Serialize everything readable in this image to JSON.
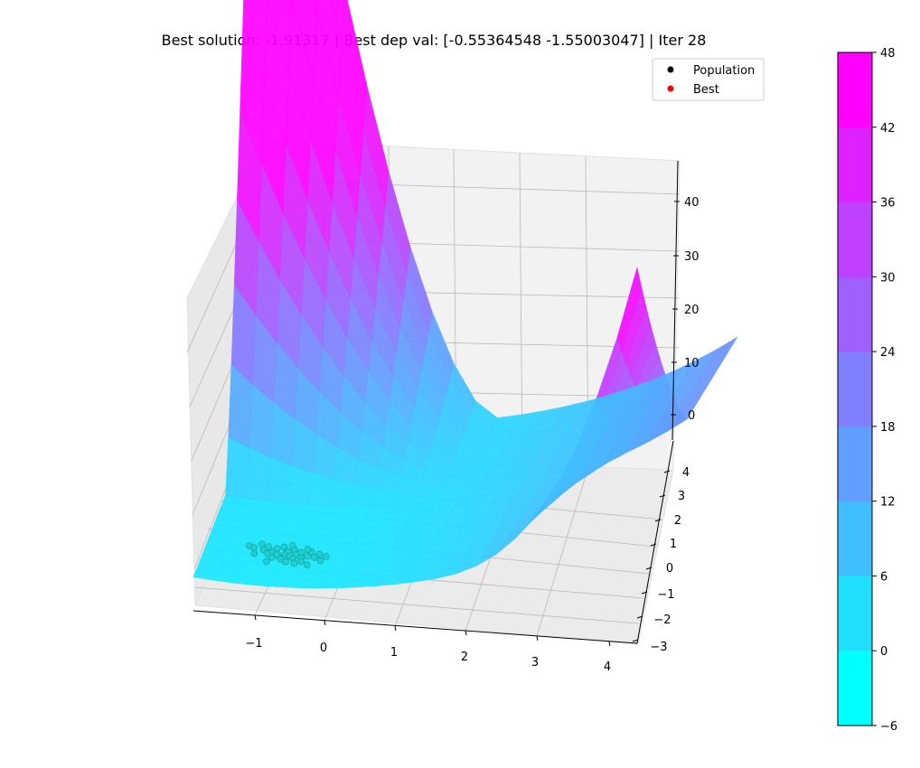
{
  "chart_data": {
    "type": "surface",
    "title": "Best solution: -1.91317 | Best dep val: [-0.55364548 -1.55003047] | Iter 28",
    "x_ticks": [
      "−1",
      "0",
      "1",
      "2",
      "3",
      "4"
    ],
    "y_ticks": [
      "−3",
      "−2",
      "−1",
      "0",
      "1",
      "2",
      "3",
      "4"
    ],
    "z_ticks": [
      "0",
      "10",
      "20",
      "30",
      "40"
    ],
    "xlim": [
      -1.5,
      4.5
    ],
    "ylim": [
      -3,
      4.5
    ],
    "zlim": [
      -6,
      48
    ],
    "colormap": "cool",
    "colorbar": {
      "ticks": [
        "−6",
        "0",
        "6",
        "12",
        "18",
        "24",
        "30",
        "36",
        "42",
        "48"
      ],
      "range": [
        -6,
        48
      ],
      "levels": 9
    },
    "legend": {
      "placement": "upper-right",
      "entries": [
        {
          "label": "Population",
          "color": "#000000"
        },
        {
          "label": "Best",
          "color": "#ff0000"
        }
      ]
    },
    "best": {
      "x": -0.55364548,
      "y": -1.55003047,
      "value": -1.91317
    },
    "population": [
      {
        "x": -0.95,
        "y": -1.3
      },
      {
        "x": -0.88,
        "y": -1.35
      },
      {
        "x": -0.8,
        "y": -1.15
      },
      {
        "x": -0.75,
        "y": -1.4
      },
      {
        "x": -0.7,
        "y": -1.25
      },
      {
        "x": -0.68,
        "y": -1.55
      },
      {
        "x": -0.62,
        "y": -1.45
      },
      {
        "x": -0.6,
        "y": -1.7
      },
      {
        "x": -0.58,
        "y": -1.3
      },
      {
        "x": -0.55,
        "y": -1.55
      },
      {
        "x": -0.52,
        "y": -1.62
      },
      {
        "x": -0.5,
        "y": -1.2
      },
      {
        "x": -0.48,
        "y": -1.75
      },
      {
        "x": -0.45,
        "y": -1.5
      },
      {
        "x": -0.42,
        "y": -1.4
      },
      {
        "x": -0.4,
        "y": -1.85
      },
      {
        "x": -0.38,
        "y": -1.6
      },
      {
        "x": -0.35,
        "y": -1.3
      },
      {
        "x": -0.32,
        "y": -1.7
      },
      {
        "x": -0.3,
        "y": -1.5
      },
      {
        "x": -0.28,
        "y": -1.9
      },
      {
        "x": -0.25,
        "y": -1.4
      },
      {
        "x": -0.22,
        "y": -1.65
      },
      {
        "x": -0.2,
        "y": -1.8
      },
      {
        "x": -0.15,
        "y": -1.55
      },
      {
        "x": -0.12,
        "y": -1.35
      },
      {
        "x": -0.1,
        "y": -1.95
      },
      {
        "x": -0.05,
        "y": -1.6
      },
      {
        "x": 0.0,
        "y": -1.45
      },
      {
        "x": 0.05,
        "y": -1.75
      },
      {
        "x": 0.1,
        "y": -1.55
      },
      {
        "x": -0.65,
        "y": -1.9
      },
      {
        "x": -0.85,
        "y": -1.6
      },
      {
        "x": -0.4,
        "y": -1.1
      },
      {
        "x": -0.18,
        "y": -1.25
      }
    ]
  }
}
